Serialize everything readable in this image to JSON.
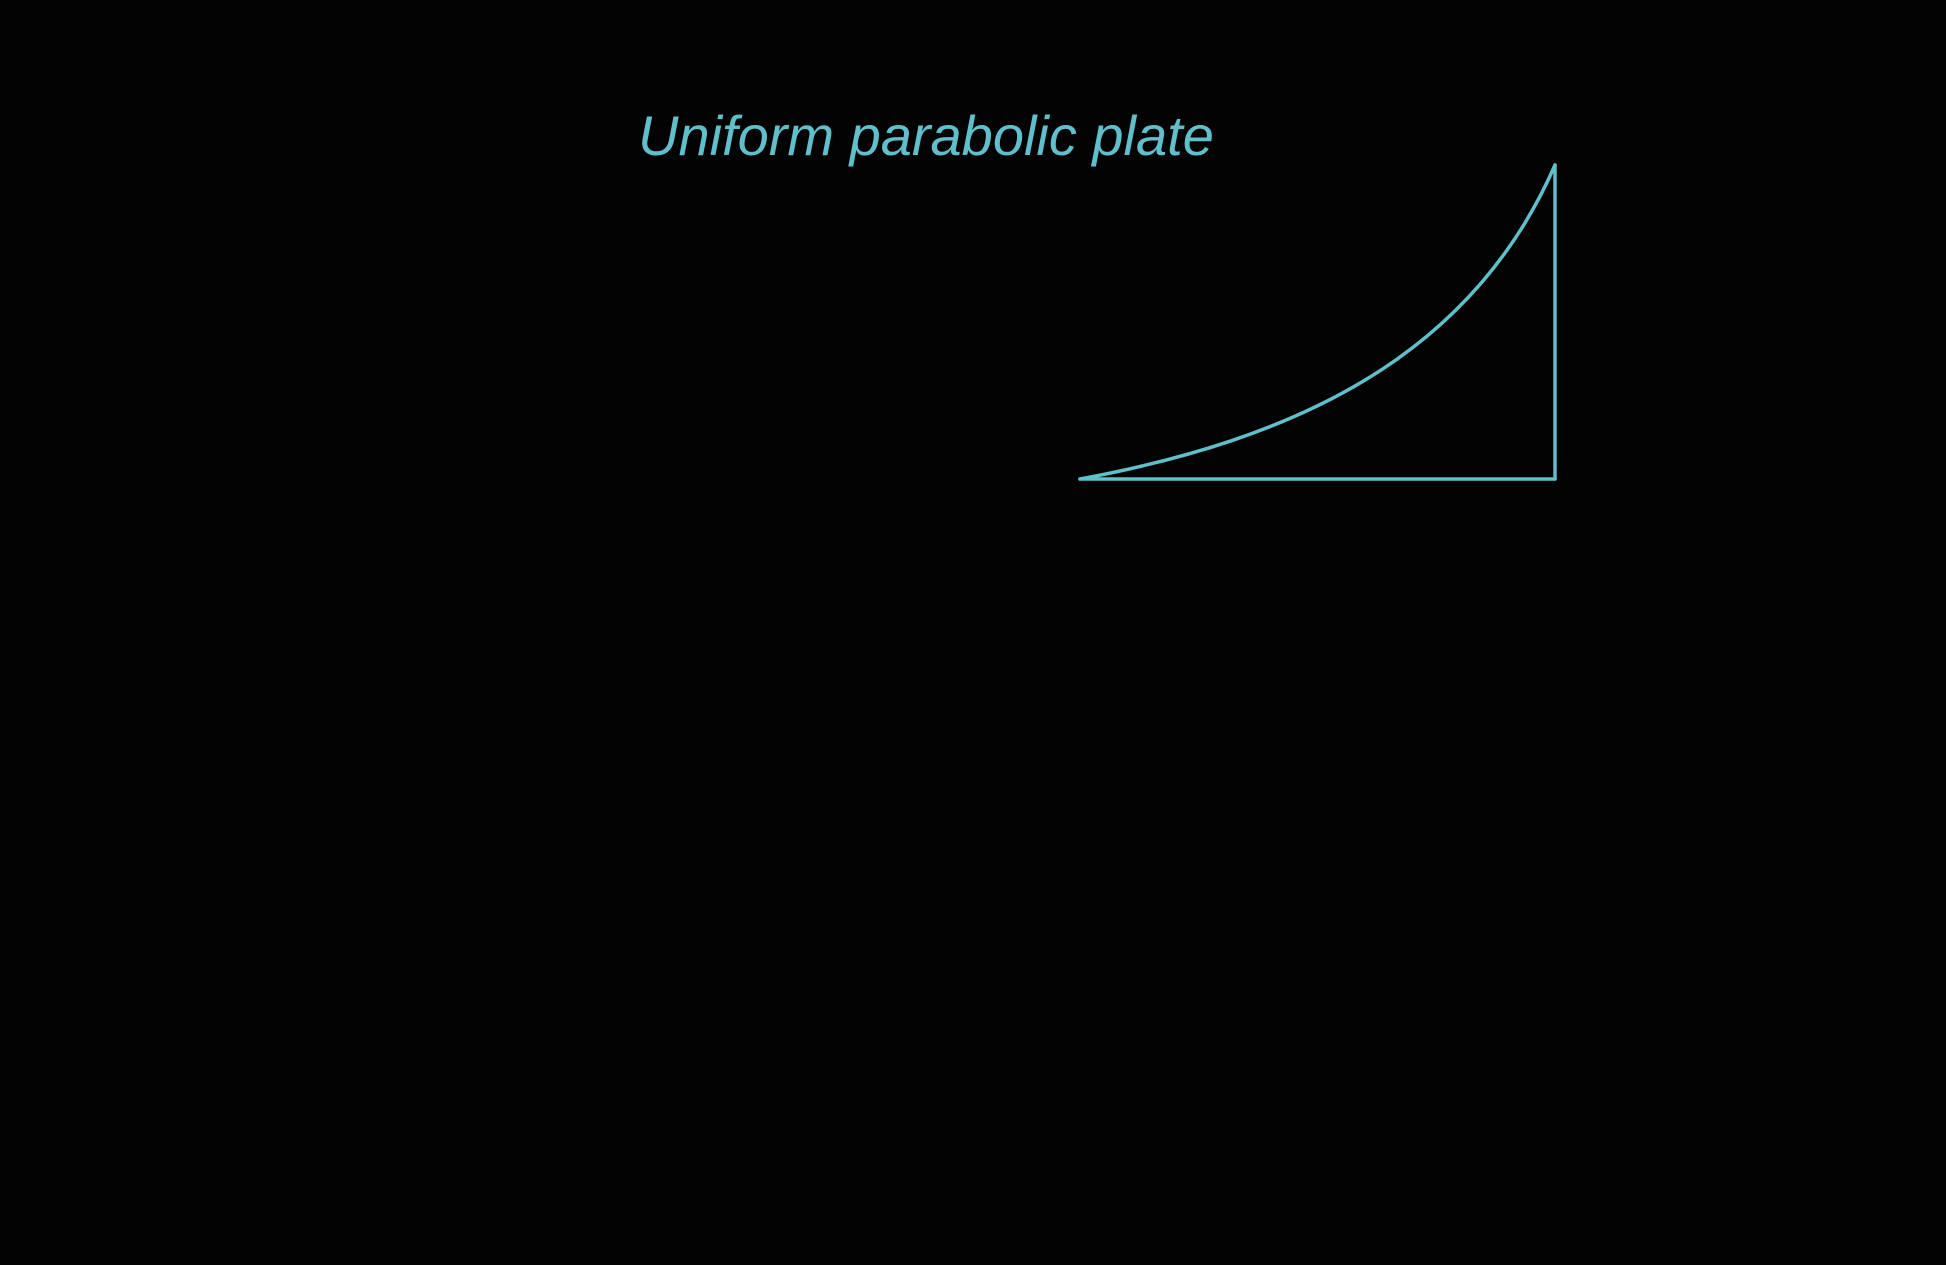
{
  "diagram": {
    "title": "Uniform parabolic plate",
    "stroke_color": "#5fbfca",
    "background_color": "#030303",
    "shape": "region bounded by a parabolic curve, a horizontal base and a vertical right edge"
  }
}
